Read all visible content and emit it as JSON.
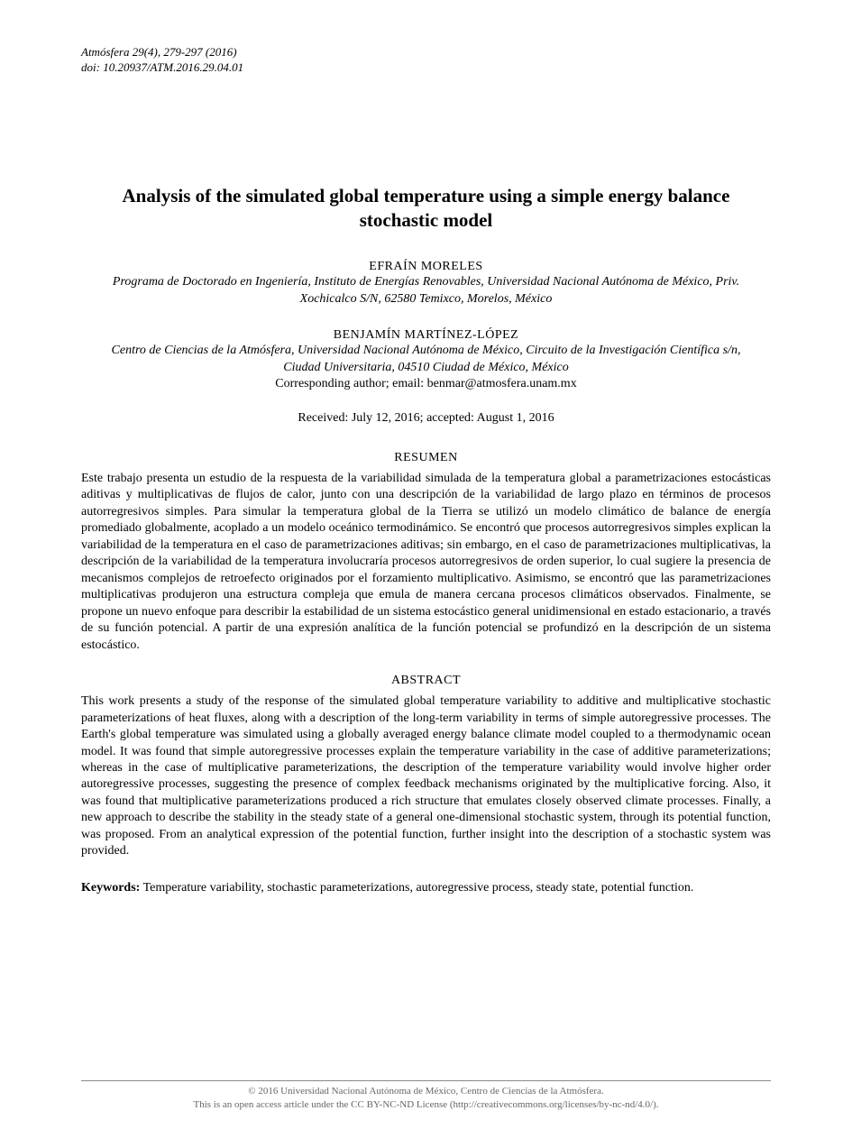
{
  "journal": {
    "citation": "Atmósfera 29(4), 279-297 (2016)",
    "doi": "doi: 10.20937/ATM.2016.29.04.01"
  },
  "title": "Analysis of the simulated global temperature using a simple energy balance stochastic model",
  "authors": [
    {
      "name": "EFRAÍN MORELES",
      "affiliation": "Programa de Doctorado en Ingeniería, Instituto de Energías Renovables, Universidad Nacional Autónoma de México, Priv. Xochicalco S/N, 62580 Temixco, Morelos, México"
    },
    {
      "name": "BENJAMÍN MARTÍNEZ-LÓPEZ",
      "affiliation": "Centro de Ciencias de la Atmósfera, Universidad Nacional Autónoma de México, Circuito de la Investigación Científica s/n, Ciudad Universitaria, 04510 Ciudad de México, México",
      "corresponding": "Corresponding author; email: benmar@atmosfera.unam.mx"
    }
  ],
  "dates": "Received: July 12, 2016; accepted: August 1, 2016",
  "resumen": {
    "heading": "RESUMEN",
    "text": "Este trabajo presenta un estudio de la respuesta de la variabilidad simulada de la temperatura global a parametrizaciones estocásticas aditivas y multiplicativas de flujos de calor, junto con una descripción de la variabilidad de largo plazo en términos de procesos autorregresivos simples. Para simular la temperatura global de la Tierra se utilizó un modelo climático de balance de energía promediado globalmente, acoplado a un modelo oceánico termodinámico. Se encontró que procesos autorregresivos simples explican la variabilidad de la temperatura en el caso de parametrizaciones aditivas; sin embargo, en el caso de parametrizaciones multiplicativas, la descripción de la variabilidad de la temperatura involucraría procesos autorregresivos de orden superior, lo cual sugiere la presencia de mecanismos complejos de retroefecto originados por el forzamiento multiplicativo. Asimismo, se encontró que las parametrizaciones multiplicativas produjeron una estructura compleja que emula de manera cercana procesos climáticos observados. Finalmente, se propone un nuevo enfoque para describir la estabilidad de un sistema estocástico general unidimensional en estado estacionario, a través de su función potencial. A partir de una expresión analítica de la función potencial se profundizó en la descripción de un sistema estocástico."
  },
  "abstract": {
    "heading": "ABSTRACT",
    "text": "This work presents a study of the response of the simulated global temperature variability to additive and multiplicative stochastic parameterizations of heat fluxes, along with a description of the long-term variability in terms of simple autoregressive processes. The Earth's global temperature was simulated using a globally averaged energy balance climate model coupled to a thermodynamic ocean model. It was found that simple autoregressive processes explain the temperature variability in the case of additive parameterizations; whereas in the case of multiplicative parameterizations, the description of the temperature variability would involve higher order autoregressive processes, suggesting the presence of complex feedback mechanisms originated by the multiplicative forcing. Also, it was found that multiplicative parameterizations produced a rich structure that emulates closely observed climate processes. Finally, a new approach to describe the stability in the steady state of a general one-dimensional stochastic system, through its potential function, was proposed. From an analytical expression of the potential function, further insight into the description of a stochastic system was provided."
  },
  "keywords": {
    "label": "Keywords:",
    "text": " Temperature variability, stochastic parameterizations, autoregressive process, steady state, potential function."
  },
  "footer": {
    "line1": "© 2016 Universidad Nacional Autónoma de México, Centro de Ciencias de la Atmósfera.",
    "line2": "This is an open access article under the CC BY-NC-ND License (http://creativecommons.org/licenses/by-nc-nd/4.0/)."
  }
}
